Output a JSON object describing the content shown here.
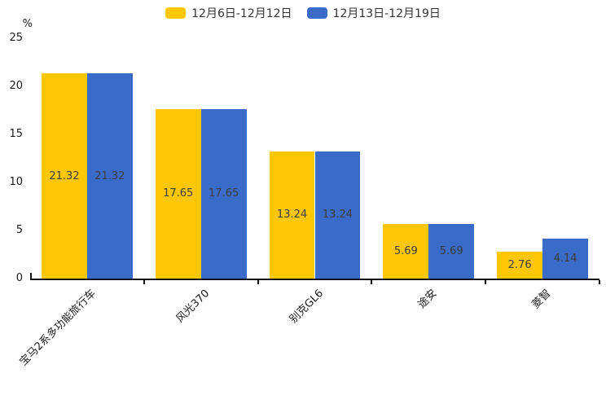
{
  "chart_data": {
    "type": "bar",
    "title": "",
    "categories": [
      "宝马2系多功能旅行车",
      "风光370",
      "别克GL6",
      "途安",
      "菱智"
    ],
    "series": [
      {
        "name": "12月6日-12月12日",
        "color": "#FDC705",
        "values": [
          21.32,
          17.65,
          13.24,
          5.69,
          2.76
        ]
      },
      {
        "name": "12月13日-12月19日",
        "color": "#3A6BC9",
        "values": [
          21.32,
          17.65,
          13.24,
          5.69,
          4.14
        ]
      }
    ],
    "xlabel": "",
    "ylabel": "%",
    "ylim": [
      0,
      25
    ],
    "yticks": [
      0,
      5,
      10,
      15,
      20,
      25
    ],
    "grid": false,
    "legend_position": "top",
    "value_labels_shown": true,
    "axis_color": "#111111",
    "value_label_color": "#3d3d3d"
  }
}
